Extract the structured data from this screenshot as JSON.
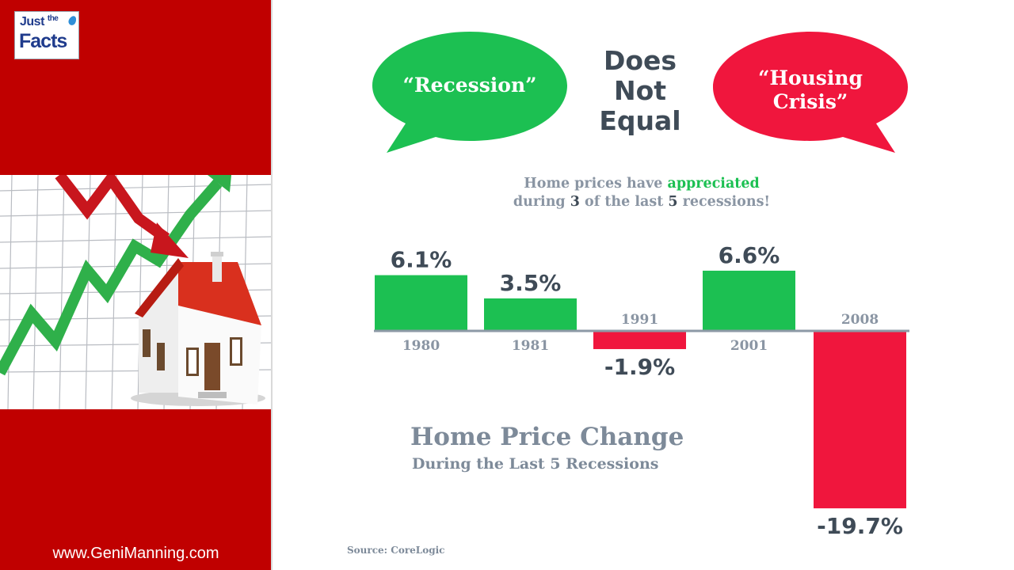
{
  "logo": {
    "line1_a": "Just",
    "line1_b": "the",
    "line2": "Facts"
  },
  "left": {
    "url": "www.GeniManning.com"
  },
  "bubbles": {
    "left_text": "“Recession”",
    "right_line1": "“Housing",
    "right_line2": "Crisis”",
    "left_color": "#1cc052",
    "right_color": "#f0163d"
  },
  "connector": {
    "line1": "Does",
    "line2": "Not",
    "line3": "Equal"
  },
  "subhead": {
    "part1": "Home prices have ",
    "highlight": "appreciated",
    "part2": "during ",
    "count": "3",
    "part3": " of the last ",
    "count2": "5",
    "part4": " recessions!"
  },
  "caption": {
    "title": "Home Price Change",
    "subtitle": "During the Last 5 Recessions",
    "source": "Source: CoreLogic"
  },
  "chart_data": {
    "type": "bar",
    "title": "Home Price Change",
    "subtitle": "During the Last 5 Recessions",
    "categories": [
      "1980",
      "1981",
      "1991",
      "2001",
      "2008"
    ],
    "values": [
      6.1,
      3.5,
      -1.9,
      6.6,
      -19.7
    ],
    "value_labels": [
      "6.1%",
      "3.5%",
      "-1.9%",
      "6.6%",
      "-19.7%"
    ],
    "unit": "%",
    "positive_color": "#1cc052",
    "negative_color": "#f0163d",
    "axis_color": "#8d99a6",
    "grid": false,
    "legend": "none"
  }
}
